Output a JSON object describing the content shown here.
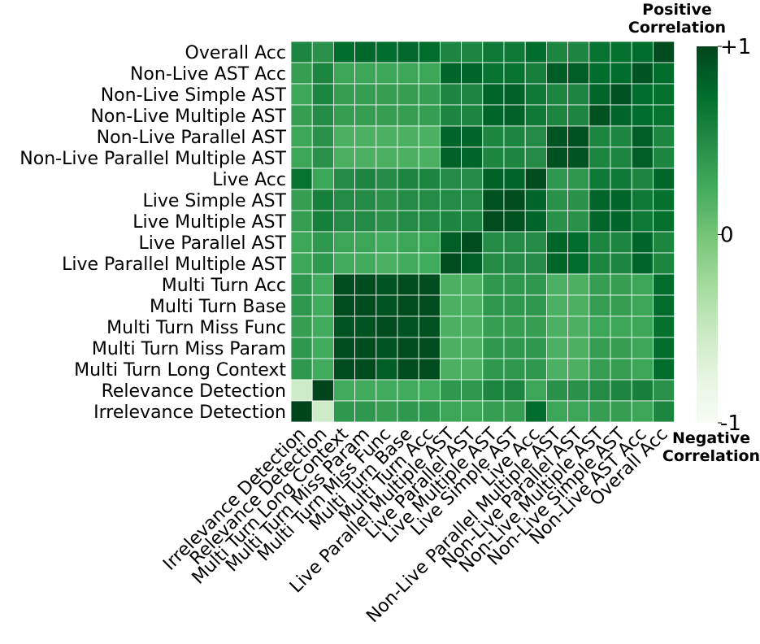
{
  "chart_data": {
    "type": "heatmap",
    "title": "",
    "xlabel": "",
    "ylabel": "",
    "row_labels": [
      "Overall Acc",
      "Non-Live AST Acc",
      "Non-Live Simple AST",
      "Non-Live Multiple AST",
      "Non-Live Parallel AST",
      "Non-Live Parallel Multiple AST",
      "Live Acc",
      "Live Simple AST",
      "Live Multiple AST",
      "Live Parallel AST",
      "Live Parallel Multiple AST",
      "Multi Turn Acc",
      "Multi Turn Base",
      "Multi Turn Miss Func",
      "Multi Turn Miss Param",
      "Multi Turn Long Context",
      "Relevance Detection",
      "Irrelevance Detection"
    ],
    "column_labels": [
      "Irrelevance Detection",
      "Relevance Detection",
      "Multi Turn Long Context",
      "Multi Turn Miss Param",
      "Multi Turn Miss Func",
      "Multi Turn Base",
      "Multi Turn Acc",
      "Live Parallel Multiple AST",
      "Live Parallel AST",
      "Live Multiple AST",
      "Live Simple AST",
      "Live Acc",
      "Non-Live Parallel Multiple AST",
      "Non-Live Parallel AST",
      "Non-Live Multiple AST",
      "Non-Live Simple AST",
      "Non-Live AST Acc",
      "Overall Acc"
    ],
    "values": [
      [
        0.55,
        0.45,
        0.75,
        0.78,
        0.75,
        0.78,
        0.75,
        0.55,
        0.55,
        0.65,
        0.65,
        0.75,
        0.55,
        0.55,
        0.7,
        0.72,
        0.75,
        0.95
      ],
      [
        0.35,
        0.55,
        0.3,
        0.3,
        0.3,
        0.3,
        0.3,
        0.8,
        0.8,
        0.7,
        0.7,
        0.6,
        0.85,
        0.85,
        0.75,
        0.75,
        0.9,
        0.75
      ],
      [
        0.3,
        0.55,
        0.35,
        0.35,
        0.35,
        0.35,
        0.35,
        0.55,
        0.55,
        0.8,
        0.82,
        0.65,
        0.55,
        0.55,
        0.8,
        0.92,
        0.75,
        0.72
      ],
      [
        0.35,
        0.5,
        0.35,
        0.35,
        0.35,
        0.35,
        0.35,
        0.55,
        0.55,
        0.8,
        0.82,
        0.65,
        0.55,
        0.55,
        0.92,
        0.8,
        0.75,
        0.7
      ],
      [
        0.3,
        0.45,
        0.2,
        0.2,
        0.2,
        0.2,
        0.2,
        0.8,
        0.8,
        0.55,
        0.55,
        0.5,
        0.9,
        0.92,
        0.55,
        0.55,
        0.85,
        0.55
      ],
      [
        0.3,
        0.45,
        0.2,
        0.2,
        0.2,
        0.2,
        0.2,
        0.82,
        0.8,
        0.55,
        0.55,
        0.5,
        0.92,
        0.9,
        0.55,
        0.55,
        0.85,
        0.55
      ],
      [
        0.7,
        0.3,
        0.5,
        0.55,
        0.5,
        0.55,
        0.55,
        0.5,
        0.5,
        0.82,
        0.8,
        0.95,
        0.4,
        0.4,
        0.65,
        0.65,
        0.55,
        0.8
      ],
      [
        0.35,
        0.6,
        0.5,
        0.5,
        0.45,
        0.5,
        0.5,
        0.5,
        0.5,
        0.92,
        0.95,
        0.8,
        0.45,
        0.45,
        0.8,
        0.8,
        0.65,
        0.72
      ],
      [
        0.35,
        0.6,
        0.5,
        0.5,
        0.45,
        0.5,
        0.5,
        0.55,
        0.55,
        0.95,
        0.92,
        0.8,
        0.45,
        0.45,
        0.8,
        0.8,
        0.65,
        0.72
      ],
      [
        0.3,
        0.4,
        0.3,
        0.3,
        0.25,
        0.3,
        0.3,
        0.85,
        0.95,
        0.5,
        0.5,
        0.5,
        0.8,
        0.75,
        0.55,
        0.55,
        0.8,
        0.55
      ],
      [
        0.3,
        0.4,
        0.25,
        0.25,
        0.2,
        0.25,
        0.25,
        0.95,
        0.85,
        0.5,
        0.5,
        0.5,
        0.8,
        0.75,
        0.55,
        0.55,
        0.8,
        0.55
      ],
      [
        0.4,
        0.25,
        0.95,
        0.95,
        0.9,
        0.95,
        0.95,
        0.2,
        0.2,
        0.4,
        0.4,
        0.4,
        0.2,
        0.2,
        0.35,
        0.35,
        0.3,
        0.75
      ],
      [
        0.4,
        0.25,
        0.95,
        0.95,
        0.9,
        0.95,
        0.95,
        0.2,
        0.2,
        0.4,
        0.4,
        0.4,
        0.2,
        0.2,
        0.35,
        0.35,
        0.3,
        0.75
      ],
      [
        0.35,
        0.25,
        0.9,
        0.9,
        0.95,
        0.9,
        0.92,
        0.2,
        0.2,
        0.35,
        0.35,
        0.35,
        0.2,
        0.2,
        0.3,
        0.3,
        0.3,
        0.72
      ],
      [
        0.4,
        0.25,
        0.95,
        0.95,
        0.9,
        0.95,
        0.95,
        0.2,
        0.2,
        0.4,
        0.4,
        0.4,
        0.2,
        0.2,
        0.35,
        0.35,
        0.3,
        0.75
      ],
      [
        0.4,
        0.25,
        0.95,
        0.95,
        0.85,
        0.95,
        0.95,
        0.2,
        0.2,
        0.4,
        0.4,
        0.4,
        0.2,
        0.2,
        0.35,
        0.35,
        0.3,
        0.75
      ],
      [
        -0.55,
        1.0,
        0.25,
        0.25,
        0.25,
        0.25,
        0.25,
        0.4,
        0.4,
        0.55,
        0.55,
        0.3,
        0.45,
        0.45,
        0.5,
        0.55,
        0.6,
        0.45
      ],
      [
        1.0,
        -0.55,
        0.4,
        0.4,
        0.35,
        0.4,
        0.4,
        0.3,
        0.3,
        0.35,
        0.35,
        0.75,
        0.3,
        0.3,
        0.35,
        0.35,
        0.3,
        0.55
      ]
    ],
    "zlim": [
      -1,
      1
    ],
    "colormap": "Greens",
    "colorbar": {
      "tick_labels": [
        "+1",
        "0",
        "-1"
      ],
      "tick_values": [
        1,
        0,
        -1
      ],
      "top_label": [
        "Positive",
        "Correlation"
      ],
      "bottom_label": [
        "Negative",
        "Correlation"
      ]
    },
    "grid": "white cell borders",
    "legend": "colorbar on right"
  }
}
